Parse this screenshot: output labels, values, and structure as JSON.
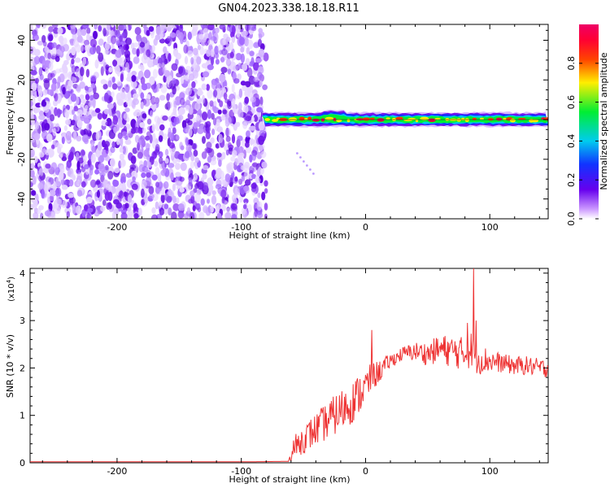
{
  "title": "GN04.2023.338.18.18.R11",
  "top_panel": {
    "xlabel": "Height of straight line (km)",
    "ylabel": "Frequency (Hz)",
    "xlim": [
      -270,
      147
    ],
    "ylim": [
      -50,
      48
    ],
    "xticks": [
      -200,
      -100,
      0,
      100
    ],
    "yticks": [
      -40,
      -20,
      0,
      20,
      40
    ],
    "colorbar": {
      "label": "Normalized spectral amplitude",
      "range": [
        0,
        1
      ],
      "ticks": [
        "0.0",
        "0.2",
        "0.4",
        "0.6",
        "0.8"
      ],
      "tick_values": [
        0.0,
        0.2,
        0.4,
        0.6,
        0.8
      ]
    }
  },
  "bottom_panel": {
    "xlabel": "Height of straight line (km)",
    "ylabel": "SNR (10 * v/v)",
    "scale_label": "(x10",
    "scale_exp": "4",
    "scale_close": ")",
    "xlim": [
      -270,
      147
    ],
    "ylim": [
      0,
      4.1
    ],
    "xticks": [
      -200,
      -100,
      0,
      100
    ],
    "yticks": [
      0,
      1,
      2,
      3,
      4
    ],
    "line_color": "#ee3333"
  },
  "chart_data": [
    {
      "type": "heatmap",
      "xlabel": "Height of straight line (km)",
      "ylabel": "Frequency (Hz)",
      "xlim": [
        -270,
        147
      ],
      "ylim": [
        -50,
        48
      ],
      "noise_region_x": [
        -270,
        -80
      ],
      "signal_band": {
        "x": [
          -83,
          147
        ],
        "frequency_center": 0,
        "frequency_halfwidth": 3,
        "peak_amplitude": 0.9
      },
      "colormap": "rainbow (purple→blue→cyan→green→yellow→red→magenta)"
    },
    {
      "type": "line",
      "xlabel": "Height of straight line (km)",
      "ylabel": "SNR (10 * v/v)",
      "units_multiplier": 10000,
      "xlim": [
        -270,
        147
      ],
      "ylim": [
        0,
        4.1
      ],
      "x": [
        -270,
        -200,
        -100,
        -62,
        -58,
        -50,
        -40,
        -30,
        -20,
        -10,
        0,
        5,
        10,
        20,
        30,
        40,
        50,
        60,
        70,
        80,
        86,
        90,
        100,
        110,
        120,
        130,
        140,
        147
      ],
      "y": [
        0.02,
        0.02,
        0.02,
        0.03,
        0.3,
        0.5,
        0.7,
        0.9,
        1.1,
        1.3,
        1.6,
        1.8,
        1.9,
        2.15,
        2.3,
        2.35,
        2.3,
        2.4,
        2.35,
        2.3,
        2.4,
        2.2,
        2.15,
        2.1,
        2.05,
        2.05,
        2.0,
        2.0
      ],
      "noise_amplitude": [
        0,
        0,
        0,
        0,
        0.25,
        0.3,
        0.35,
        0.4,
        0.45,
        0.45,
        0.4,
        0.3,
        0.25,
        0.15,
        0.15,
        0.2,
        0.25,
        0.3,
        0.35,
        0.35,
        0.4,
        0.35,
        0.25,
        0.2,
        0.2,
        0.2,
        0.2,
        0.2
      ],
      "spikes": [
        {
          "x": 5,
          "y": 2.8
        },
        {
          "x": 87,
          "y": 4.1
        },
        {
          "x": 89,
          "y": 3.0
        },
        {
          "x": 82,
          "y": 2.95
        }
      ]
    }
  ]
}
